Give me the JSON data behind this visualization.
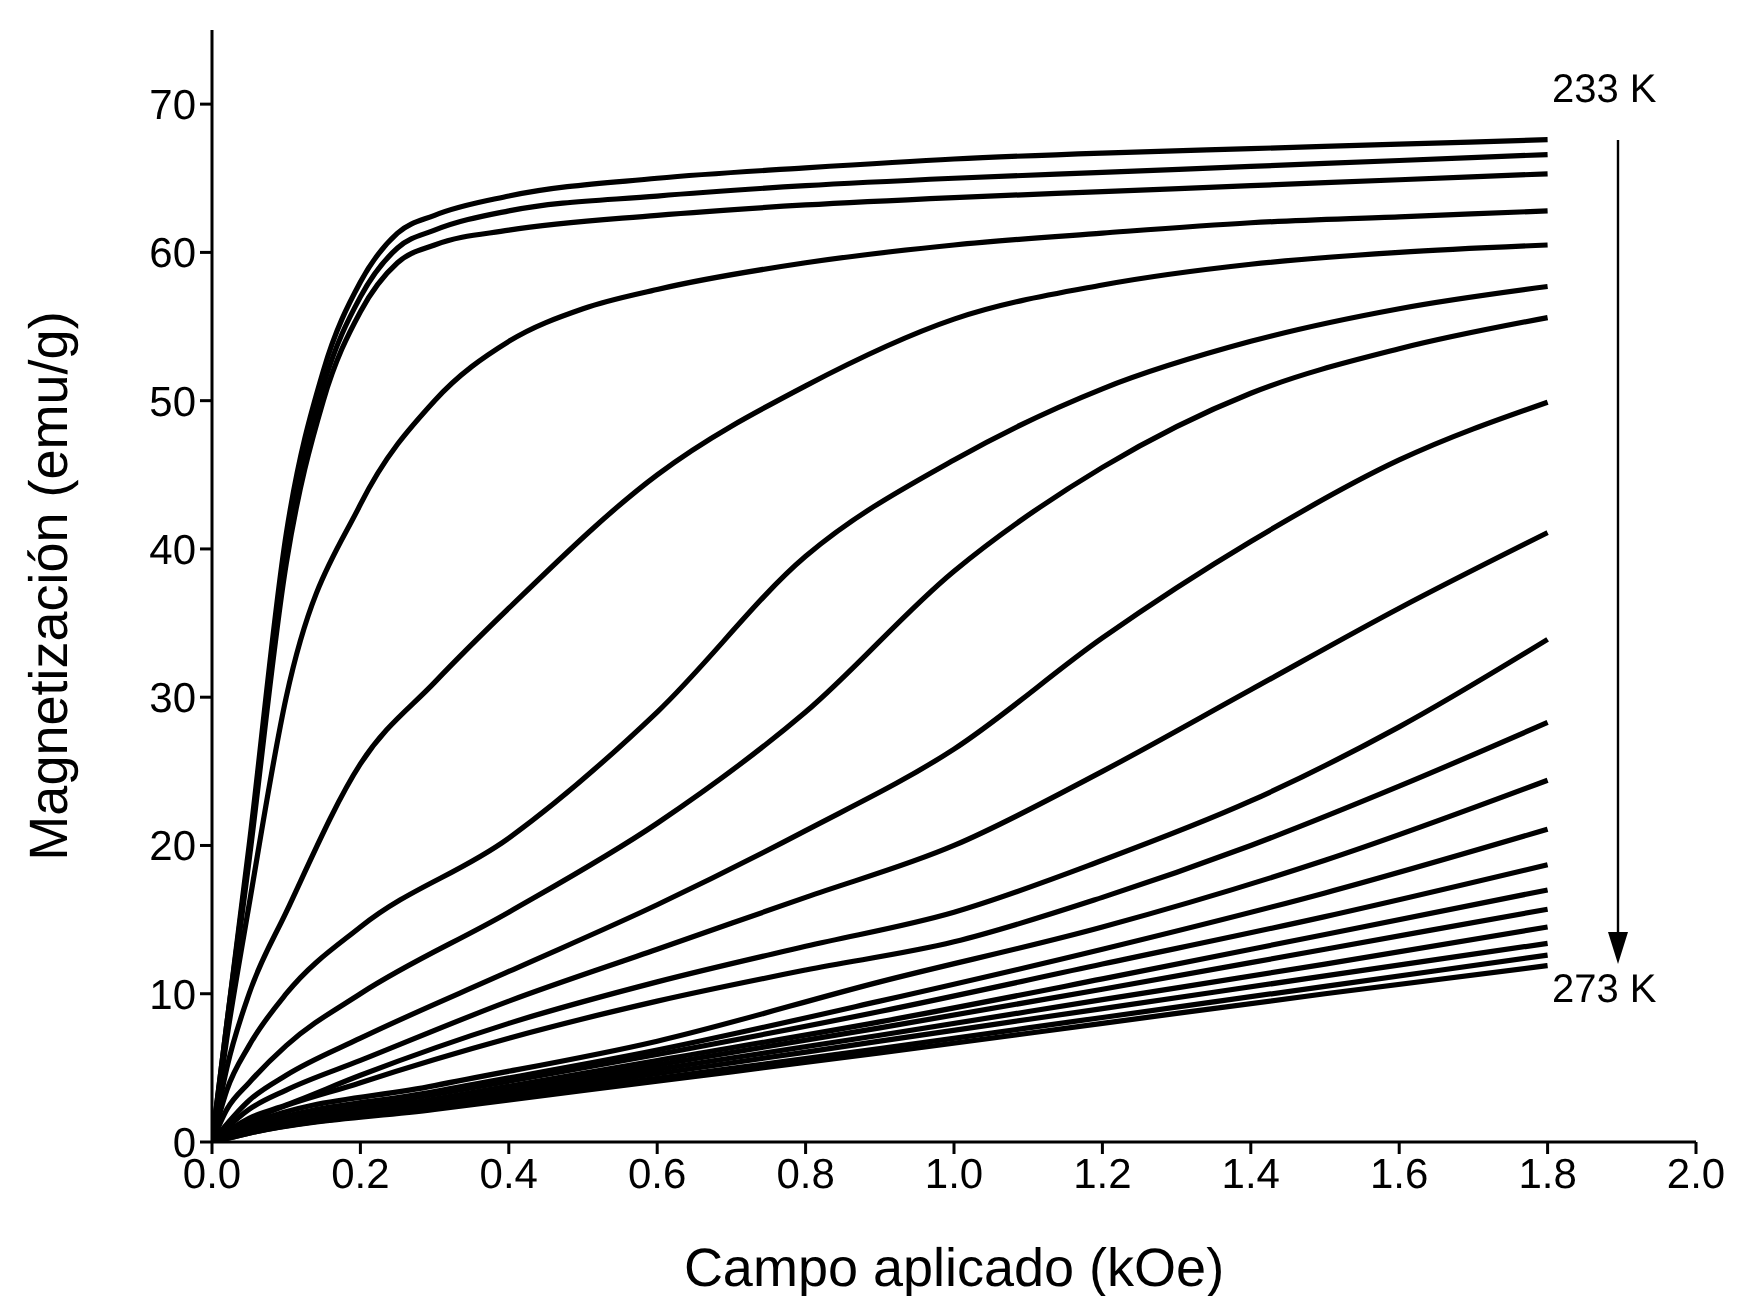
{
  "chart_data": {
    "type": "line",
    "xlabel": "Campo aplicado (kOe)",
    "ylabel": "Magnetización (emu/g)",
    "xlim": [
      0,
      2.0
    ],
    "xticks": [
      {
        "value": 0,
        "label": "0.0"
      },
      0.2,
      0.4,
      0.6,
      0.8,
      {
        "value": 1,
        "label": "1.0"
      },
      1.2,
      1.4,
      1.6,
      1.8,
      {
        "value": 2,
        "label": "2.0"
      }
    ],
    "ylim": [
      0,
      75
    ],
    "yticks": [
      0,
      10,
      20,
      30,
      40,
      50,
      60,
      70
    ],
    "grid": false,
    "legend": false,
    "marker": "none",
    "line_style": "solid",
    "annotations": [
      "233 K",
      "273 K"
    ],
    "series": [
      {
        "color": "#000000",
        "x": [
          0,
          0.02,
          0.05,
          0.1,
          0.15,
          0.2,
          0.25,
          0.3,
          0.4,
          0.6,
          0.8,
          1.0,
          1.2,
          1.4,
          1.6,
          1.8
        ],
        "values": [
          0,
          8,
          20,
          41,
          52,
          58,
          61.3,
          62.5,
          63.8,
          65,
          65.7,
          66.3,
          66.7,
          67,
          67.3,
          67.6
        ]
      },
      {
        "color": "#000000",
        "x": [
          0,
          0.02,
          0.05,
          0.1,
          0.15,
          0.2,
          0.25,
          0.3,
          0.4,
          0.6,
          0.8,
          1.0,
          1.2,
          1.4,
          1.6,
          1.8
        ],
        "values": [
          0,
          8,
          19.5,
          40,
          51,
          57,
          60.3,
          61.5,
          62.8,
          63.8,
          64.5,
          65,
          65.4,
          65.8,
          66.2,
          66.6
        ]
      },
      {
        "color": "#000000",
        "x": [
          0,
          0.02,
          0.05,
          0.1,
          0.15,
          0.2,
          0.25,
          0.3,
          0.4,
          0.6,
          0.8,
          1.0,
          1.2,
          1.4,
          1.6,
          1.8
        ],
        "values": [
          0,
          7.5,
          19,
          39,
          50,
          56,
          59.3,
          60.5,
          61.5,
          62.5,
          63.2,
          63.7,
          64.1,
          64.5,
          64.9,
          65.3
        ]
      },
      {
        "color": "#000000",
        "x": [
          0,
          0.02,
          0.05,
          0.1,
          0.2,
          0.3,
          0.4,
          0.5,
          0.6,
          0.8,
          1.0,
          1.2,
          1.4,
          1.6,
          1.8
        ],
        "values": [
          0,
          7,
          16,
          30,
          43,
          50,
          54,
          56.2,
          57.5,
          59.3,
          60.5,
          61.3,
          62,
          62.4,
          62.8
        ]
      },
      {
        "color": "#000000",
        "x": [
          0,
          0.02,
          0.05,
          0.1,
          0.2,
          0.3,
          0.4,
          0.6,
          0.8,
          1.0,
          1.2,
          1.4,
          1.6,
          1.8
        ],
        "values": [
          0,
          5,
          10,
          15.5,
          25.5,
          31,
          36,
          45,
          51,
          55.5,
          57.8,
          59.2,
          60,
          60.5
        ]
      },
      {
        "color": "#000000",
        "x": [
          0,
          0.02,
          0.05,
          0.1,
          0.2,
          0.4,
          0.6,
          0.8,
          1.0,
          1.2,
          1.4,
          1.6,
          1.8
        ],
        "values": [
          0,
          3.5,
          6.5,
          10,
          14.5,
          20.5,
          29,
          39.5,
          46,
          50.8,
          54,
          56.2,
          57.7
        ]
      },
      {
        "color": "#000000",
        "x": [
          0,
          0.02,
          0.05,
          0.1,
          0.2,
          0.4,
          0.6,
          0.8,
          1.0,
          1.2,
          1.4,
          1.6,
          1.8
        ],
        "values": [
          0,
          2.2,
          4,
          6.5,
          10,
          15.5,
          21.5,
          29,
          38.5,
          45.5,
          50.5,
          53.5,
          55.6
        ]
      },
      {
        "color": "#000000",
        "x": [
          0,
          0.05,
          0.1,
          0.2,
          0.4,
          0.6,
          0.8,
          1.0,
          1.2,
          1.4,
          1.6,
          1.8
        ],
        "values": [
          0,
          2.8,
          4.5,
          7,
          11.5,
          16,
          21,
          26.5,
          34,
          40.5,
          46,
          49.9
        ]
      },
      {
        "color": "#000000",
        "x": [
          0,
          0.05,
          0.1,
          0.2,
          0.4,
          0.6,
          0.8,
          1.0,
          1.2,
          1.4,
          1.6,
          1.8
        ],
        "values": [
          0,
          2.2,
          3.5,
          5.5,
          9.5,
          13,
          16.5,
          20,
          25,
          30.5,
          36,
          41.1
        ]
      },
      {
        "color": "#000000",
        "x": [
          0,
          0.05,
          0.1,
          0.2,
          0.4,
          0.6,
          0.8,
          1.0,
          1.2,
          1.4,
          1.6,
          1.8
        ],
        "values": [
          0,
          1.6,
          2.5,
          4.5,
          8,
          10.8,
          13.2,
          15.5,
          19,
          23,
          28,
          33.9
        ]
      },
      {
        "color": "#000000",
        "x": [
          0,
          0.05,
          0.2,
          0.4,
          0.6,
          0.8,
          1.0,
          1.2,
          1.4,
          1.6,
          1.8
        ],
        "values": [
          0,
          1.4,
          4,
          7,
          9.5,
          11.6,
          13.5,
          16.5,
          20,
          24,
          28.3
        ]
      },
      {
        "color": "#000000",
        "x": [
          0,
          0.05,
          0.3,
          0.6,
          0.9,
          1.2,
          1.5,
          1.8
        ],
        "values": [
          0,
          1.2,
          3.8,
          6.8,
          10.8,
          14.5,
          19,
          24.4
        ]
      },
      {
        "color": "#000000",
        "x": [
          0,
          0.05,
          0.3,
          0.6,
          0.9,
          1.2,
          1.5,
          1.8
        ],
        "values": [
          0,
          1,
          3.4,
          6.2,
          9.5,
          13,
          16.8,
          21.1
        ]
      },
      {
        "color": "#000000",
        "x": [
          0,
          0.05,
          0.3,
          0.6,
          0.9,
          1.2,
          1.5,
          1.8
        ],
        "values": [
          0,
          0.9,
          3.2,
          5.9,
          8.8,
          12,
          15.2,
          18.7
        ]
      },
      {
        "color": "#000000",
        "x": [
          0,
          0.05,
          0.3,
          0.6,
          0.9,
          1.2,
          1.5,
          1.8
        ],
        "values": [
          0,
          0.8,
          2.9,
          5.5,
          8.1,
          11,
          14,
          17.0
        ]
      },
      {
        "color": "#000000",
        "x": [
          0,
          0.05,
          0.3,
          0.6,
          0.9,
          1.2,
          1.5,
          1.8
        ],
        "values": [
          0,
          0.8,
          2.8,
          5.2,
          7.7,
          10.3,
          13,
          15.7
        ]
      },
      {
        "color": "#000000",
        "x": [
          0,
          0.05,
          0.3,
          0.6,
          0.9,
          1.2,
          1.5,
          1.8
        ],
        "values": [
          0,
          0.7,
          2.6,
          4.9,
          7.2,
          9.6,
          12,
          14.5
        ]
      },
      {
        "color": "#000000",
        "x": [
          0,
          0.05,
          0.3,
          0.6,
          0.9,
          1.2,
          1.5,
          1.8
        ],
        "values": [
          0,
          0.7,
          2.5,
          4.6,
          6.8,
          9,
          11.2,
          13.4
        ]
      },
      {
        "color": "#000000",
        "x": [
          0,
          0.05,
          0.3,
          0.6,
          0.9,
          1.2,
          1.5,
          1.8
        ],
        "values": [
          0,
          0.6,
          2.3,
          4.3,
          6.3,
          8.4,
          10.5,
          12.6
        ]
      },
      {
        "color": "#000000",
        "x": [
          0,
          0.05,
          0.3,
          0.6,
          0.9,
          1.2,
          1.5,
          1.8
        ],
        "values": [
          0,
          0.6,
          2.2,
          4.1,
          6,
          8,
          10,
          11.9
        ]
      }
    ]
  }
}
